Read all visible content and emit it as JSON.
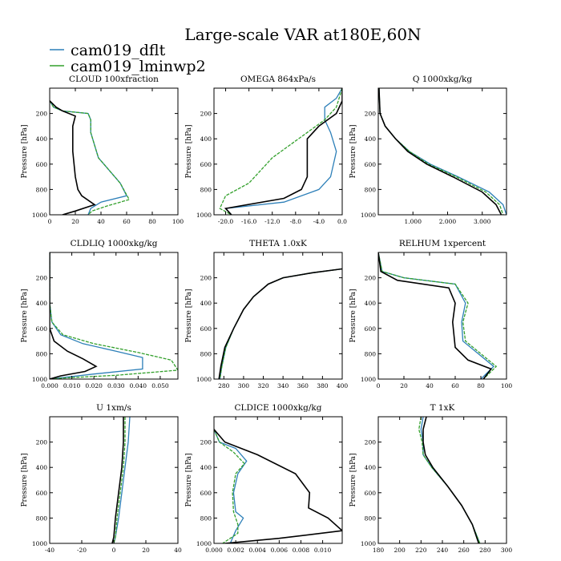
{
  "title": "Large-scale VAR at180E,60N",
  "legend": [
    {
      "name": "cam019_dflt",
      "color": "#2c7fb8"
    },
    {
      "name": "cam019_lminwp2",
      "color": "#33a02c"
    }
  ],
  "colors": {
    "black_series": "#000000"
  },
  "chart_data": [
    {
      "type": "line",
      "title": "CLOUD  100xfraction",
      "ylabel": "Pressure [hPa]",
      "xlim": [
        0,
        100
      ],
      "ylim": [
        1000,
        0
      ],
      "xticks": [
        "0",
        "20",
        "40",
        "60",
        "80",
        "100"
      ],
      "xtick_values": [
        0,
        20,
        40,
        60,
        80,
        100
      ],
      "yticks": [
        "200",
        "400",
        "600",
        "800",
        "1000"
      ],
      "ytick_values": [
        200,
        400,
        600,
        800,
        1000
      ],
      "series": [
        {
          "name": "cam019_dflt",
          "x": [
            0,
            3,
            10,
            30,
            32,
            32,
            38,
            55,
            60,
            40,
            32,
            30
          ],
          "y": [
            100,
            150,
            180,
            200,
            250,
            350,
            550,
            750,
            850,
            900,
            950,
            1000
          ]
        },
        {
          "name": "cam019_lminwp2",
          "x": [
            0,
            3,
            10,
            30,
            32,
            32,
            38,
            55,
            62,
            45,
            33,
            30
          ],
          "y": [
            100,
            150,
            180,
            200,
            250,
            350,
            550,
            750,
            880,
            930,
            970,
            1000
          ]
        },
        {
          "name": "black",
          "x": [
            0,
            5,
            10,
            20,
            18,
            18,
            20,
            22,
            25,
            35,
            20,
            10
          ],
          "y": [
            100,
            150,
            180,
            220,
            300,
            500,
            700,
            800,
            850,
            920,
            970,
            1000
          ]
        }
      ]
    },
    {
      "type": "line",
      "title": "OMEGA  864xPa/s",
      "ylabel": "Pressure [hPa]",
      "xlim": [
        -22,
        0
      ],
      "ylim": [
        1000,
        0
      ],
      "xticks": [
        "-20.0",
        "-16.0",
        "-12.0",
        "-8.0",
        "-4.0",
        "0.0"
      ],
      "xtick_values": [
        -20,
        -16,
        -12,
        -8,
        -4,
        0
      ],
      "yticks": [
        "200",
        "400",
        "600",
        "800",
        "1000"
      ],
      "ytick_values": [
        200,
        400,
        600,
        800,
        1000
      ],
      "series": [
        {
          "name": "cam019_dflt",
          "x": [
            0,
            -1,
            -3,
            -3,
            -2,
            -1,
            -2,
            -4,
            -10,
            -20,
            -19
          ],
          "y": [
            0,
            80,
            150,
            250,
            350,
            500,
            700,
            800,
            900,
            950,
            1000
          ]
        },
        {
          "name": "cam019_lminwp2",
          "x": [
            0,
            -1,
            -3,
            -6,
            -9,
            -12,
            -14,
            -16,
            -20,
            -21,
            -19
          ],
          "y": [
            0,
            150,
            250,
            350,
            450,
            550,
            650,
            750,
            850,
            950,
            1000
          ]
        },
        {
          "name": "black",
          "x": [
            0,
            0,
            -1,
            -4,
            -6,
            -6,
            -6,
            -7,
            -10,
            -20,
            -19
          ],
          "y": [
            0,
            100,
            200,
            300,
            400,
            550,
            700,
            800,
            870,
            950,
            1000
          ]
        }
      ]
    },
    {
      "type": "line",
      "title": "Q  1000xkg/kg",
      "ylabel": "Pressure [hPa]",
      "xlim": [
        0,
        3.7
      ],
      "ylim": [
        1000,
        0
      ],
      "xticks": [
        "1.000",
        "2.000",
        "3.000"
      ],
      "xtick_values": [
        1,
        2,
        3
      ],
      "yticks": [
        "200",
        "400",
        "600",
        "800",
        "1000"
      ],
      "ytick_values": [
        200,
        400,
        600,
        800,
        1000
      ],
      "series": [
        {
          "name": "cam019_dflt",
          "x": [
            0.02,
            0.05,
            0.2,
            0.5,
            0.9,
            1.5,
            2.3,
            3.2,
            3.6,
            3.7
          ],
          "y": [
            0,
            200,
            300,
            400,
            500,
            600,
            700,
            820,
            920,
            1000
          ]
        },
        {
          "name": "cam019_lminwp2",
          "x": [
            0.02,
            0.05,
            0.2,
            0.5,
            0.9,
            1.45,
            2.25,
            3.1,
            3.5,
            3.6
          ],
          "y": [
            0,
            200,
            300,
            400,
            500,
            600,
            700,
            820,
            920,
            1000
          ]
        },
        {
          "name": "black",
          "x": [
            0.02,
            0.05,
            0.2,
            0.5,
            0.85,
            1.4,
            2.15,
            3.0,
            3.4,
            3.55
          ],
          "y": [
            0,
            200,
            300,
            400,
            500,
            600,
            700,
            820,
            920,
            1000
          ]
        }
      ]
    },
    {
      "type": "line",
      "title": "CLDLIQ  1000xkg/kg",
      "ylabel": "Pressure [hPa]",
      "xlim": [
        0,
        0.058
      ],
      "ylim": [
        1000,
        0
      ],
      "xticks": [
        "0.000",
        "0.010",
        "0.020",
        "0.030",
        "0.040",
        "0.050"
      ],
      "xtick_values": [
        0,
        0.01,
        0.02,
        0.03,
        0.04,
        0.05
      ],
      "yticks": [
        "200",
        "400",
        "600",
        "800",
        "1000"
      ],
      "ytick_values": [
        200,
        400,
        600,
        800,
        1000
      ],
      "series": [
        {
          "name": "cam019_dflt",
          "x": [
            0,
            0,
            0.001,
            0.005,
            0.015,
            0.03,
            0.042,
            0.042,
            0.02,
            0.005,
            0
          ],
          "y": [
            0,
            400,
            550,
            650,
            720,
            780,
            830,
            920,
            960,
            990,
            1000
          ]
        },
        {
          "name": "cam019_lminwp2",
          "x": [
            0,
            0,
            0.001,
            0.006,
            0.02,
            0.04,
            0.055,
            0.058,
            0.03,
            0.008,
            0
          ],
          "y": [
            0,
            400,
            550,
            650,
            720,
            790,
            850,
            930,
            970,
            990,
            1000
          ]
        },
        {
          "name": "black",
          "x": [
            0,
            0,
            0,
            0.002,
            0.008,
            0.015,
            0.021,
            0.016,
            0.005,
            0
          ],
          "y": [
            0,
            400,
            600,
            700,
            780,
            840,
            900,
            940,
            975,
            1000
          ]
        }
      ]
    },
    {
      "type": "line",
      "title": "THETA  1.0xK",
      "ylabel": "Pressure [hPa]",
      "xlim": [
        270,
        400
      ],
      "ylim": [
        1000,
        0
      ],
      "xticks": [
        "280",
        "300",
        "320",
        "340",
        "360",
        "380",
        "400"
      ],
      "xtick_values": [
        280,
        300,
        320,
        340,
        360,
        380,
        400
      ],
      "yticks": [
        "200",
        "400",
        "600",
        "800",
        "1000"
      ],
      "ytick_values": [
        200,
        400,
        600,
        800,
        1000
      ],
      "series": [
        {
          "name": "cam019_dflt",
          "x": [
            400,
            370,
            340,
            325,
            310,
            300,
            290,
            282,
            278,
            276
          ],
          "y": [
            130,
            160,
            200,
            250,
            350,
            450,
            600,
            750,
            900,
            1000
          ]
        },
        {
          "name": "cam019_lminwp2",
          "x": [
            400,
            370,
            340,
            325,
            310,
            300,
            290,
            282,
            278,
            276
          ],
          "y": [
            130,
            160,
            200,
            250,
            350,
            450,
            600,
            750,
            900,
            1000
          ]
        },
        {
          "name": "black",
          "x": [
            400,
            370,
            340,
            325,
            310,
            300,
            290,
            281,
            277,
            275
          ],
          "y": [
            130,
            160,
            200,
            250,
            350,
            450,
            600,
            750,
            900,
            1000
          ]
        }
      ]
    },
    {
      "type": "line",
      "title": "RELHUM  1xpercent",
      "ylabel": "Pressure [hPa]",
      "xlim": [
        0,
        100
      ],
      "ylim": [
        1000,
        0
      ],
      "xticks": [
        "0",
        "20",
        "40",
        "60",
        "80",
        "100"
      ],
      "xtick_values": [
        0,
        20,
        40,
        60,
        80,
        100
      ],
      "yticks": [
        "200",
        "400",
        "600",
        "800",
        "1000"
      ],
      "ytick_values": [
        200,
        400,
        600,
        800,
        1000
      ],
      "series": [
        {
          "name": "cam019_dflt",
          "x": [
            0,
            3,
            20,
            60,
            68,
            65,
            66,
            78,
            90,
            80
          ],
          "y": [
            0,
            150,
            200,
            250,
            400,
            550,
            700,
            800,
            900,
            1000
          ]
        },
        {
          "name": "cam019_lminwp2",
          "x": [
            0,
            3,
            20,
            60,
            70,
            66,
            68,
            80,
            92,
            82
          ],
          "y": [
            0,
            150,
            200,
            250,
            400,
            550,
            700,
            800,
            900,
            1000
          ]
        },
        {
          "name": "black",
          "x": [
            0,
            2,
            15,
            55,
            60,
            58,
            60,
            70,
            88,
            82
          ],
          "y": [
            0,
            150,
            220,
            280,
            400,
            550,
            750,
            850,
            920,
            1000
          ]
        }
      ]
    },
    {
      "type": "line",
      "title": "U  1xm/s",
      "ylabel": "Pressure [hPa]",
      "xlim": [
        -40,
        40
      ],
      "ylim": [
        1000,
        0
      ],
      "xticks": [
        "-40",
        "-20",
        "0",
        "20",
        "40"
      ],
      "xtick_values": [
        -40,
        -20,
        0,
        20,
        40
      ],
      "yticks": [
        "200",
        "400",
        "600",
        "800",
        "1000"
      ],
      "ytick_values": [
        200,
        400,
        600,
        800,
        1000
      ],
      "series": [
        {
          "name": "cam019_dflt",
          "x": [
            10,
            9,
            7,
            5,
            3,
            1,
            0
          ],
          "y": [
            0,
            200,
            400,
            600,
            800,
            950,
            1000
          ]
        },
        {
          "name": "cam019_lminwp2",
          "x": [
            7,
            7,
            6,
            4,
            2,
            1,
            0
          ],
          "y": [
            0,
            200,
            400,
            600,
            800,
            950,
            1000
          ]
        },
        {
          "name": "black",
          "x": [
            6,
            6,
            5,
            3,
            1,
            0,
            -1
          ],
          "y": [
            0,
            200,
            400,
            600,
            800,
            950,
            1000
          ]
        }
      ]
    },
    {
      "type": "line",
      "title": "CLDICE  1000xkg/kg",
      "ylabel": "Pressure [hPa]",
      "xlim": [
        0,
        0.0118
      ],
      "ylim": [
        1000,
        0
      ],
      "xticks": [
        "0.000",
        "0.002",
        "0.004",
        "0.006",
        "0.008",
        "0.010"
      ],
      "xtick_values": [
        0,
        0.002,
        0.004,
        0.006,
        0.008,
        0.01
      ],
      "yticks": [
        "200",
        "400",
        "600",
        "800",
        "1000"
      ],
      "ytick_values": [
        200,
        400,
        600,
        800,
        1000
      ],
      "series": [
        {
          "name": "cam019_dflt",
          "x": [
            0,
            0.0005,
            0.002,
            0.003,
            0.0022,
            0.0018,
            0.002,
            0.0027,
            0.002,
            0.0015
          ],
          "y": [
            100,
            200,
            250,
            350,
            450,
            600,
            750,
            800,
            900,
            1000
          ]
        },
        {
          "name": "cam019_lminwp2",
          "x": [
            0,
            0.0005,
            0.0018,
            0.0028,
            0.002,
            0.0017,
            0.0018,
            0.0022,
            0.0022,
            0.0008
          ],
          "y": [
            100,
            200,
            280,
            370,
            450,
            600,
            750,
            850,
            920,
            1000
          ]
        },
        {
          "name": "black",
          "x": [
            0,
            0.001,
            0.004,
            0.0075,
            0.0088,
            0.0087,
            0.0105,
            0.0118,
            0.006,
            0.001
          ],
          "y": [
            100,
            200,
            300,
            450,
            600,
            720,
            800,
            900,
            960,
            1000
          ]
        }
      ]
    },
    {
      "type": "line",
      "title": "T  1xK",
      "ylabel": "Pressure [hPa]",
      "xlim": [
        180,
        300
      ],
      "ylim": [
        1000,
        0
      ],
      "xticks": [
        "180",
        "200",
        "220",
        "240",
        "260",
        "280",
        "300"
      ],
      "xtick_values": [
        180,
        200,
        220,
        240,
        260,
        280,
        300
      ],
      "yticks": [
        "200",
        "400",
        "600",
        "800",
        "1000"
      ],
      "ytick_values": [
        200,
        400,
        600,
        800,
        1000
      ],
      "series": [
        {
          "name": "cam019_dflt",
          "x": [
            222,
            220,
            222,
            222,
            230,
            245,
            258,
            268,
            275
          ],
          "y": [
            0,
            100,
            200,
            300,
            400,
            550,
            700,
            850,
            1000
          ]
        },
        {
          "name": "cam019_lminwp2",
          "x": [
            220,
            218,
            221,
            222,
            230,
            245,
            258,
            268,
            275
          ],
          "y": [
            0,
            100,
            200,
            300,
            400,
            550,
            700,
            850,
            1000
          ]
        },
        {
          "name": "black",
          "x": [
            225,
            222,
            222,
            224,
            231,
            245,
            258,
            268,
            274
          ],
          "y": [
            0,
            100,
            200,
            300,
            400,
            550,
            700,
            850,
            1000
          ]
        }
      ]
    }
  ]
}
